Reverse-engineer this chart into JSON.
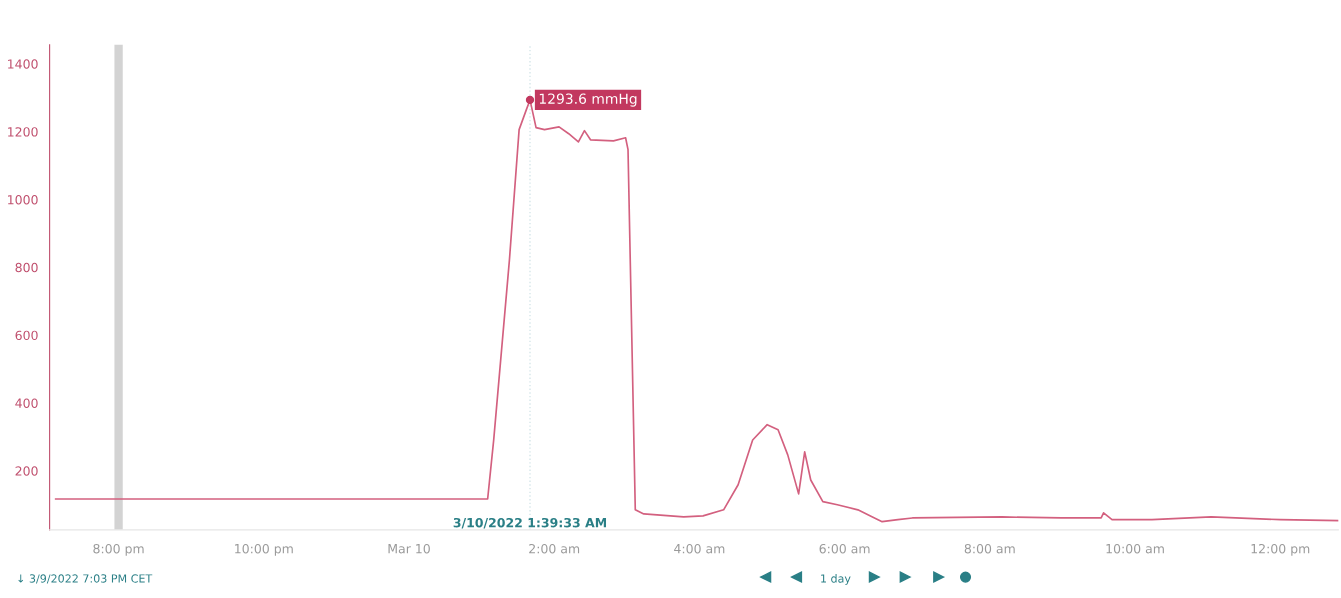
{
  "chart_data": {
    "type": "line",
    "x": [
      "2022-03-09T19:08",
      "2022-03-10T01:05",
      "2022-03-10T01:10",
      "2022-03-10T01:23",
      "2022-03-10T01:31",
      "2022-03-10T01:37",
      "2022-03-10T01:40",
      "2022-03-10T01:45",
      "2022-03-10T01:52",
      "2022-03-10T02:04",
      "2022-03-10T02:12",
      "2022-03-10T02:20",
      "2022-03-10T02:25",
      "2022-03-10T02:30",
      "2022-03-10T02:49",
      "2022-03-10T02:59",
      "2022-03-10T03:01",
      "2022-03-10T03:07",
      "2022-03-10T03:14",
      "2022-03-10T03:47",
      "2022-03-10T04:03",
      "2022-03-10T04:20",
      "2022-03-10T04:32",
      "2022-03-10T04:44",
      "2022-03-10T04:56",
      "2022-03-10T05:05",
      "2022-03-10T05:13",
      "2022-03-10T05:22",
      "2022-03-10T05:27",
      "2022-03-10T05:32",
      "2022-03-10T05:42",
      "2022-03-10T05:54",
      "2022-03-10T06:11",
      "2022-03-10T06:23",
      "2022-03-10T06:31",
      "2022-03-10T06:44",
      "2022-03-10T06:56",
      "2022-03-10T08:10",
      "2022-03-10T08:59",
      "2022-03-10T09:32",
      "2022-03-10T09:34",
      "2022-03-10T09:41",
      "2022-03-10T10:14",
      "2022-03-10T11:03",
      "2022-03-10T12:00",
      "2022-03-10T12:48"
    ],
    "series": [
      {
        "color": "#d3607f",
        "values": [
          117,
          117,
          291,
          822,
          1206,
          1265,
          1293.6,
          1212,
          1206,
          1214,
          1194,
          1170,
          1203,
          1176,
          1173,
          1182,
          1147,
          85,
          73,
          64,
          67,
          85,
          159,
          291,
          336,
          321,
          247,
          132,
          256,
          173,
          109,
          100,
          85,
          64,
          50,
          56,
          61,
          64,
          61,
          61,
          76,
          56,
          56,
          64,
          56,
          53
        ]
      }
    ],
    "xlim": [
      "2022-03-09T19:03",
      "2022-03-10T12:48"
    ],
    "xticks": [
      {
        "value": "2022-03-09T20:00",
        "label": "8:00 pm"
      },
      {
        "value": "2022-03-09T22:00",
        "label": "10:00 pm"
      },
      {
        "value": "2022-03-10T00:00",
        "label": "Mar 10"
      },
      {
        "value": "2022-03-10T02:00",
        "label": "2:00 am"
      },
      {
        "value": "2022-03-10T04:00",
        "label": "4:00 am"
      },
      {
        "value": "2022-03-10T06:00",
        "label": "6:00 am"
      },
      {
        "value": "2022-03-10T08:00",
        "label": "8:00 am"
      },
      {
        "value": "2022-03-10T10:00",
        "label": "10:00 am"
      },
      {
        "value": "2022-03-10T12:00",
        "label": "12:00 pm"
      }
    ],
    "ylim": [
      26,
      1456
    ],
    "yticks": [
      200,
      400,
      600,
      800,
      1000,
      1200,
      1400
    ],
    "grid": false,
    "legend": false,
    "marker": "none",
    "line_style": "solid",
    "ref_lines": [
      {
        "axis": "x",
        "value": "2022-03-09T20:00",
        "color": "#c8c8c8",
        "line_style": "solid"
      },
      {
        "axis": "x",
        "value": "2022-03-10T01:40",
        "label": "3/10/2022 1:39:33 AM",
        "color": "#c9dfe3",
        "line_style": "dotted"
      }
    ],
    "annotations": [
      {
        "text": "1293.6 mmHg",
        "x": "2022-03-10T01:40",
        "y": 1293.6
      },
      "↓ 3/9/2022 7:03 PM CET",
      "1 day"
    ]
  }
}
